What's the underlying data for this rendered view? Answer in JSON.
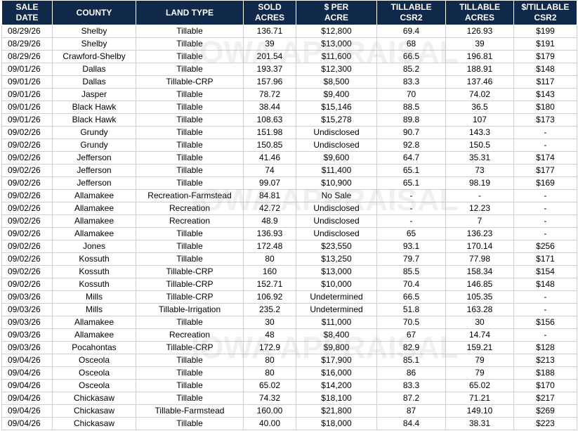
{
  "columns": [
    "SALE DATE",
    "COUNTY",
    "LAND TYPE",
    "SOLD|ACRES",
    "$ PER|ACRE",
    "TILLABLE|CSR2",
    "TILLABLE|ACRES",
    "$/TILLABLE|CSR2"
  ],
  "watermark": "IOWA APPRAISAL",
  "rows": [
    [
      "08/29/26",
      "Shelby",
      "Tillable",
      "136.71",
      "$12,800",
      "69.4",
      "126.93",
      "$199"
    ],
    [
      "08/29/26",
      "Shelby",
      "Tillable",
      "39",
      "$13,000",
      "68",
      "39",
      "$191"
    ],
    [
      "08/29/26",
      "Crawford-Shelby",
      "Tillable",
      "201.54",
      "$11,600",
      "66.5",
      "196.81",
      "$179"
    ],
    [
      "09/01/26",
      "Dallas",
      "Tillable",
      "193.37",
      "$12,300",
      "85.2",
      "188.91",
      "$148"
    ],
    [
      "09/01/26",
      "Dallas",
      "Tillable-CRP",
      "157.96",
      "$8,500",
      "83.3",
      "137.46",
      "$117"
    ],
    [
      "09/01/26",
      "Jasper",
      "Tillable",
      "78.72",
      "$9,400",
      "70",
      "74.02",
      "$143"
    ],
    [
      "09/01/26",
      "Black Hawk",
      "Tillable",
      "38.44",
      "$15,146",
      "88.5",
      "36.5",
      "$180"
    ],
    [
      "09/01/26",
      "Black Hawk",
      "Tillable",
      "108.63",
      "$15,278",
      "89.8",
      "107",
      "$173"
    ],
    [
      "09/02/26",
      "Grundy",
      "Tillable",
      "151.98",
      "Undisclosed",
      "90.7",
      "143.3",
      "-"
    ],
    [
      "09/02/26",
      "Grundy",
      "Tillable",
      "150.85",
      "Undisclosed",
      "92.8",
      "150.5",
      "-"
    ],
    [
      "09/02/26",
      "Jefferson",
      "Tillable",
      "41.46",
      "$9,600",
      "64.7",
      "35.31",
      "$174"
    ],
    [
      "09/02/26",
      "Jefferson",
      "Tillable",
      "74",
      "$11,400",
      "65.1",
      "73",
      "$177"
    ],
    [
      "09/02/26",
      "Jefferson",
      "Tillable",
      "99.07",
      "$10,900",
      "65.1",
      "98.19",
      "$169"
    ],
    [
      "09/02/26",
      "Allamakee",
      "Recreation-Farmstead",
      "84.81",
      "No Sale",
      "-",
      "-",
      "-"
    ],
    [
      "09/02/26",
      "Allamakee",
      "Recreation",
      "42.72",
      "Undisclosed",
      "-",
      "12.23",
      "-"
    ],
    [
      "09/02/26",
      "Allamakee",
      "Recreation",
      "48.9",
      "Undisclosed",
      "-",
      "7",
      "-"
    ],
    [
      "09/02/26",
      "Allamakee",
      "Tillable",
      "136.93",
      "Undisclosed",
      "65",
      "136.23",
      "-"
    ],
    [
      "09/02/26",
      "Jones",
      "Tillable",
      "172.48",
      "$23,550",
      "93.1",
      "170.14",
      "$256"
    ],
    [
      "09/02/26",
      "Kossuth",
      "Tillable",
      "80",
      "$13,250",
      "79.7",
      "77.98",
      "$171"
    ],
    [
      "09/02/26",
      "Kossuth",
      "Tillable-CRP",
      "160",
      "$13,000",
      "85.5",
      "158.34",
      "$154"
    ],
    [
      "09/02/26",
      "Kossuth",
      "Tillable-CRP",
      "152.71",
      "$10,000",
      "70.4",
      "146.85",
      "$148"
    ],
    [
      "09/03/26",
      "Mills",
      "Tillable-CRP",
      "106.92",
      "Undetermined",
      "66.5",
      "105.35",
      "-"
    ],
    [
      "09/03/26",
      "Mills",
      "Tillable-Irrigation",
      "235.2",
      "Undetermined",
      "51.8",
      "163.28",
      "-"
    ],
    [
      "09/03/26",
      "Allamakee",
      "Tillable",
      "30",
      "$11,000",
      "70.5",
      "30",
      "$156"
    ],
    [
      "09/03/26",
      "Allamakee",
      "Recreation",
      "48",
      "$8,400",
      "67",
      "14.74",
      "-"
    ],
    [
      "09/03/26",
      "Pocahontas",
      "Tillable-CRP",
      "172.9",
      "$9,800",
      "82.9",
      "159.21",
      "$128"
    ],
    [
      "09/04/26",
      "Osceola",
      "Tillable",
      "80",
      "$17,900",
      "85.1",
      "79",
      "$213"
    ],
    [
      "09/04/26",
      "Osceola",
      "Tillable",
      "80",
      "$16,000",
      "86",
      "79",
      "$188"
    ],
    [
      "09/04/26",
      "Osceola",
      "Tillable",
      "65.02",
      "$14,200",
      "83.3",
      "65.02",
      "$170"
    ],
    [
      "09/04/26",
      "Chickasaw",
      "Tillable",
      "74.32",
      "$18,100",
      "87.2",
      "71.21",
      "$217"
    ],
    [
      "09/04/26",
      "Chickasaw",
      "Tillable-Farmstead",
      "160.00",
      "$21,800",
      "87",
      "149.10",
      "$269"
    ],
    [
      "09/04/26",
      "Chickasaw",
      "Tillable",
      "40.00",
      "$18,000",
      "84.4",
      "38.31",
      "$223"
    ]
  ]
}
